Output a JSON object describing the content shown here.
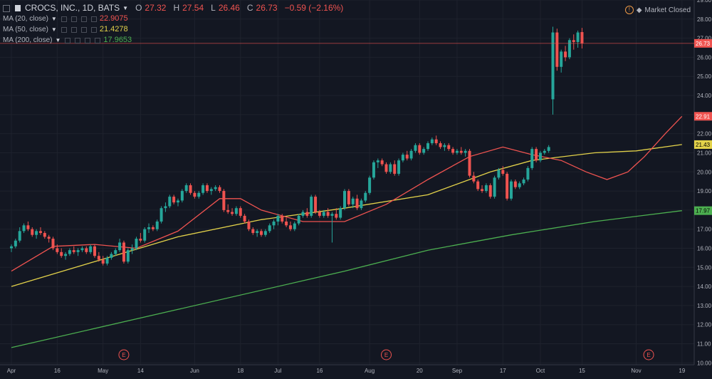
{
  "header": {
    "symbol": "CROCS, INC., 1D, BATS",
    "open_label": "O",
    "open": "27.32",
    "high_label": "H",
    "high": "27.54",
    "low_label": "L",
    "low": "26.46",
    "close_label": "C",
    "close": "26.73",
    "change": "−0.59 (−2.16%)",
    "market_status": "Market Closed"
  },
  "indicators": [
    {
      "name": "MA (20, close)",
      "value": "22.9075",
      "color": "#ef5350"
    },
    {
      "name": "MA (50, close)",
      "value": "21.4278",
      "color": "#e3d24a"
    },
    {
      "name": "MA (200, close)",
      "value": "17.9653",
      "color": "#4caf50"
    }
  ],
  "colors": {
    "up": "#26a69a",
    "down": "#ef5350",
    "background": "#131722",
    "grid": "#1e222d"
  },
  "chart_data": {
    "type": "candlestick",
    "y_axis_ticks": [
      "10.00",
      "11.00",
      "12.00",
      "13.00",
      "14.00",
      "15.00",
      "16.00",
      "17.00",
      "18.00",
      "19.00",
      "20.00",
      "21.00",
      "22.00",
      "23.00",
      "24.00",
      "25.00",
      "26.00",
      "27.00",
      "28.00",
      "29.00"
    ],
    "ylim": [
      9.9,
      29.0
    ],
    "x_axis_ticks": [
      {
        "label": "Apr",
        "day": 0
      },
      {
        "label": "16",
        "day": 11
      },
      {
        "label": "May",
        "day": 22
      },
      {
        "label": "14",
        "day": 31
      },
      {
        "label": "Jun",
        "day": 44
      },
      {
        "label": "18",
        "day": 55
      },
      {
        "label": "Jul",
        "day": 64
      },
      {
        "label": "16",
        "day": 74
      },
      {
        "label": "Aug",
        "day": 86
      },
      {
        "label": "20",
        "day": 98
      },
      {
        "label": "Sep",
        "day": 107
      },
      {
        "label": "17",
        "day": 118
      },
      {
        "label": "Oct",
        "day": 127
      },
      {
        "label": "15",
        "day": 137
      },
      {
        "label": "Nov",
        "day": 150
      },
      {
        "label": "19",
        "day": 161
      }
    ],
    "price_labels": [
      {
        "label": "26.73",
        "value": 26.73,
        "color": "#ef5350"
      },
      {
        "label": "22.91",
        "value": 22.91,
        "color": "#ef5350"
      },
      {
        "label": "21.43",
        "value": 21.43,
        "color": "#e3d24a"
      },
      {
        "label": "17.97",
        "value": 17.97,
        "color": "#4caf50"
      }
    ],
    "earnings_markers": [
      {
        "label": "E",
        "day": 27
      },
      {
        "label": "E",
        "day": 90
      },
      {
        "label": "E",
        "day": 153
      }
    ],
    "candles": [
      [
        16.0,
        16.2,
        15.8,
        16.1
      ],
      [
        16.1,
        16.5,
        16.0,
        16.4
      ],
      [
        16.4,
        17.1,
        16.3,
        16.9
      ],
      [
        16.9,
        17.3,
        16.8,
        17.2
      ],
      [
        17.2,
        17.4,
        16.9,
        17.0
      ],
      [
        17.0,
        17.1,
        16.6,
        16.7
      ],
      [
        16.7,
        17.0,
        16.5,
        16.9
      ],
      [
        16.9,
        17.1,
        16.7,
        16.8
      ],
      [
        16.8,
        16.9,
        16.5,
        16.6
      ],
      [
        16.6,
        16.7,
        16.3,
        16.5
      ],
      [
        16.5,
        16.6,
        15.9,
        16.0
      ],
      [
        16.0,
        16.2,
        15.7,
        15.8
      ],
      [
        15.8,
        16.0,
        15.5,
        15.6
      ],
      [
        15.6,
        15.8,
        15.4,
        15.7
      ],
      [
        15.7,
        16.0,
        15.6,
        15.9
      ],
      [
        15.9,
        16.1,
        15.7,
        15.8
      ],
      [
        15.8,
        16.0,
        15.6,
        15.9
      ],
      [
        15.9,
        16.1,
        15.8,
        16.0
      ],
      [
        16.0,
        16.1,
        15.7,
        15.8
      ],
      [
        15.8,
        16.2,
        15.7,
        16.1
      ],
      [
        16.1,
        16.2,
        15.5,
        15.6
      ],
      [
        15.6,
        15.8,
        15.3,
        15.4
      ],
      [
        15.4,
        15.6,
        15.1,
        15.2
      ],
      [
        15.2,
        15.6,
        15.1,
        15.5
      ],
      [
        15.5,
        15.8,
        15.4,
        15.7
      ],
      [
        15.7,
        16.0,
        15.6,
        15.9
      ],
      [
        15.9,
        16.5,
        15.8,
        16.3
      ],
      [
        16.3,
        16.4,
        15.2,
        15.3
      ],
      [
        15.3,
        16.0,
        15.2,
        15.9
      ],
      [
        15.9,
        16.2,
        15.7,
        16.0
      ],
      [
        16.0,
        16.6,
        15.9,
        16.5
      ],
      [
        16.5,
        16.8,
        16.3,
        16.4
      ],
      [
        16.4,
        17.1,
        16.3,
        17.0
      ],
      [
        17.0,
        17.3,
        16.8,
        17.1
      ],
      [
        17.1,
        17.2,
        16.9,
        17.0
      ],
      [
        17.0,
        17.5,
        16.9,
        17.4
      ],
      [
        17.4,
        18.2,
        17.3,
        18.1
      ],
      [
        18.1,
        18.4,
        17.9,
        18.2
      ],
      [
        18.2,
        18.8,
        18.1,
        18.7
      ],
      [
        18.7,
        18.8,
        18.3,
        18.4
      ],
      [
        18.4,
        18.6,
        18.2,
        18.5
      ],
      [
        18.5,
        19.1,
        18.4,
        19.0
      ],
      [
        19.0,
        19.4,
        18.9,
        19.3
      ],
      [
        19.3,
        19.4,
        18.8,
        18.9
      ],
      [
        18.9,
        19.0,
        18.6,
        18.7
      ],
      [
        18.7,
        19.0,
        18.6,
        18.9
      ],
      [
        18.9,
        19.4,
        18.8,
        19.3
      ],
      [
        19.3,
        19.4,
        18.9,
        19.0
      ],
      [
        19.0,
        19.2,
        18.8,
        19.1
      ],
      [
        19.1,
        19.3,
        19.0,
        19.2
      ],
      [
        19.2,
        19.3,
        18.9,
        19.0
      ],
      [
        19.0,
        19.1,
        17.9,
        18.0
      ],
      [
        18.0,
        18.3,
        17.8,
        17.9
      ],
      [
        17.9,
        18.1,
        17.7,
        17.8
      ],
      [
        17.8,
        18.2,
        17.7,
        18.1
      ],
      [
        18.1,
        18.2,
        17.6,
        17.7
      ],
      [
        17.7,
        17.8,
        17.3,
        17.4
      ],
      [
        17.4,
        17.5,
        16.9,
        17.0
      ],
      [
        17.0,
        17.1,
        16.7,
        16.8
      ],
      [
        16.8,
        17.0,
        16.6,
        16.9
      ],
      [
        16.9,
        17.0,
        16.6,
        16.7
      ],
      [
        16.7,
        17.0,
        16.6,
        16.9
      ],
      [
        16.9,
        17.3,
        16.8,
        17.2
      ],
      [
        17.2,
        17.5,
        17.0,
        17.4
      ],
      [
        17.4,
        17.8,
        17.2,
        17.7
      ],
      [
        17.7,
        17.8,
        17.3,
        17.4
      ],
      [
        17.4,
        17.6,
        17.1,
        17.2
      ],
      [
        17.2,
        17.4,
        16.9,
        17.0
      ],
      [
        17.0,
        17.4,
        16.9,
        17.3
      ],
      [
        17.3,
        17.8,
        17.2,
        17.7
      ],
      [
        17.7,
        18.0,
        17.6,
        17.9
      ],
      [
        17.9,
        18.1,
        17.6,
        17.7
      ],
      [
        17.7,
        18.8,
        17.6,
        18.7
      ],
      [
        18.7,
        18.8,
        17.8,
        17.9
      ],
      [
        17.9,
        18.0,
        17.6,
        17.7
      ],
      [
        17.7,
        18.0,
        17.6,
        17.9
      ],
      [
        17.9,
        18.1,
        17.6,
        17.7
      ],
      [
        17.7,
        17.9,
        16.3,
        17.8
      ],
      [
        17.8,
        18.1,
        17.5,
        17.6
      ],
      [
        17.6,
        18.2,
        17.5,
        18.1
      ],
      [
        18.1,
        19.1,
        18.0,
        19.0
      ],
      [
        19.0,
        19.1,
        18.2,
        18.3
      ],
      [
        18.3,
        18.7,
        18.1,
        18.6
      ],
      [
        18.6,
        18.8,
        18.0,
        18.1
      ],
      [
        18.1,
        18.6,
        18.0,
        18.5
      ],
      [
        18.5,
        19.0,
        18.4,
        18.9
      ],
      [
        18.9,
        19.8,
        18.8,
        19.7
      ],
      [
        19.7,
        20.6,
        19.6,
        20.5
      ],
      [
        20.5,
        20.7,
        20.2,
        20.6
      ],
      [
        20.6,
        20.7,
        20.3,
        20.4
      ],
      [
        20.4,
        20.5,
        19.9,
        20.0
      ],
      [
        20.0,
        20.5,
        19.9,
        20.4
      ],
      [
        20.4,
        20.6,
        19.8,
        19.9
      ],
      [
        19.9,
        20.7,
        19.8,
        20.6
      ],
      [
        20.6,
        21.0,
        20.5,
        20.9
      ],
      [
        20.9,
        21.1,
        20.6,
        20.7
      ],
      [
        20.7,
        21.2,
        20.6,
        21.1
      ],
      [
        21.1,
        21.5,
        21.0,
        21.4
      ],
      [
        21.4,
        21.5,
        20.9,
        21.0
      ],
      [
        21.0,
        21.3,
        20.9,
        21.2
      ],
      [
        21.2,
        21.6,
        21.1,
        21.5
      ],
      [
        21.5,
        21.8,
        21.4,
        21.7
      ],
      [
        21.7,
        21.9,
        21.4,
        21.5
      ],
      [
        21.5,
        21.6,
        21.2,
        21.3
      ],
      [
        21.3,
        21.5,
        21.1,
        21.4
      ],
      [
        21.4,
        21.5,
        21.1,
        21.2
      ],
      [
        21.2,
        21.3,
        20.9,
        21.0
      ],
      [
        21.0,
        21.2,
        20.9,
        21.1
      ],
      [
        21.1,
        21.3,
        20.9,
        21.0
      ],
      [
        21.0,
        21.2,
        20.8,
        21.1
      ],
      [
        21.1,
        21.2,
        19.7,
        19.8
      ],
      [
        19.8,
        20.0,
        19.4,
        19.5
      ],
      [
        19.5,
        19.6,
        19.0,
        19.1
      ],
      [
        19.1,
        19.3,
        18.9,
        19.0
      ],
      [
        19.0,
        19.4,
        18.9,
        19.3
      ],
      [
        19.3,
        19.4,
        18.6,
        18.7
      ],
      [
        18.7,
        19.8,
        18.6,
        19.7
      ],
      [
        19.7,
        20.2,
        19.6,
        20.1
      ],
      [
        20.1,
        20.3,
        19.8,
        19.9
      ],
      [
        19.9,
        20.0,
        18.5,
        18.6
      ],
      [
        18.6,
        19.6,
        18.5,
        19.5
      ],
      [
        19.5,
        19.6,
        19.1,
        19.2
      ],
      [
        19.2,
        19.5,
        19.1,
        19.4
      ],
      [
        19.4,
        19.7,
        19.3,
        19.6
      ],
      [
        19.6,
        20.3,
        19.5,
        20.2
      ],
      [
        20.2,
        21.3,
        20.1,
        21.2
      ],
      [
        21.2,
        21.3,
        20.5,
        20.6
      ],
      [
        20.6,
        21.1,
        20.5,
        21.0
      ],
      [
        21.0,
        21.2,
        20.9,
        21.1
      ],
      [
        21.1,
        21.4,
        21.0,
        21.3
      ],
      [
        23.8,
        27.6,
        23.0,
        27.3
      ],
      [
        27.3,
        27.5,
        25.3,
        25.5
      ],
      [
        25.5,
        26.4,
        25.2,
        26.3
      ],
      [
        26.3,
        26.6,
        25.8,
        26.0
      ],
      [
        26.0,
        27.0,
        25.9,
        26.9
      ],
      [
        26.9,
        27.2,
        26.4,
        26.8
      ],
      [
        26.8,
        27.4,
        26.5,
        27.3
      ],
      [
        27.32,
        27.54,
        26.46,
        26.73
      ]
    ],
    "candle_days": "sequential trading days; Nov 5 gap up begins at index 130",
    "ma20_anchor": [
      [
        0,
        14.8
      ],
      [
        10,
        16.1
      ],
      [
        20,
        16.2
      ],
      [
        30,
        16.0
      ],
      [
        40,
        16.9
      ],
      [
        50,
        18.6
      ],
      [
        55,
        18.6
      ],
      [
        60,
        18.0
      ],
      [
        70,
        17.4
      ],
      [
        80,
        17.4
      ],
      [
        90,
        18.3
      ],
      [
        100,
        19.6
      ],
      [
        110,
        20.8
      ],
      [
        118,
        21.3
      ],
      [
        125,
        20.9
      ],
      [
        132,
        20.6
      ],
      [
        138,
        20.0
      ],
      [
        143,
        19.6
      ],
      [
        148,
        20.0
      ],
      [
        152,
        20.8
      ],
      [
        157,
        22.0
      ],
      [
        161,
        22.91
      ]
    ],
    "ma50_anchor": [
      [
        0,
        14.0
      ],
      [
        20,
        15.3
      ],
      [
        40,
        16.6
      ],
      [
        60,
        17.5
      ],
      [
        80,
        18.1
      ],
      [
        100,
        18.8
      ],
      [
        115,
        20.0
      ],
      [
        125,
        20.6
      ],
      [
        140,
        21.0
      ],
      [
        150,
        21.1
      ],
      [
        161,
        21.43
      ]
    ],
    "ma200_anchor": [
      [
        0,
        10.8
      ],
      [
        40,
        12.8
      ],
      [
        80,
        14.8
      ],
      [
        100,
        15.9
      ],
      [
        120,
        16.7
      ],
      [
        140,
        17.4
      ],
      [
        161,
        17.97
      ]
    ]
  }
}
